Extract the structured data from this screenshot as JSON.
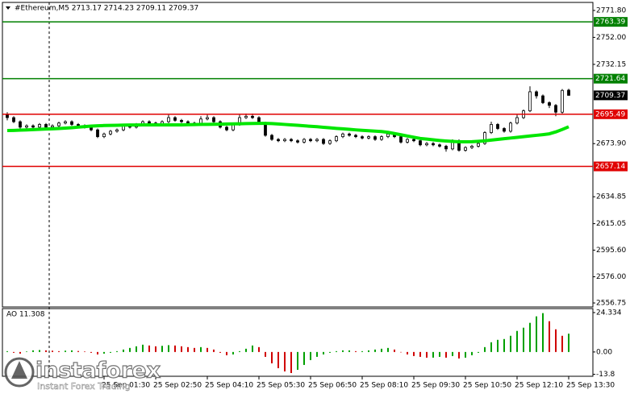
{
  "chart_data": [
    {
      "type": "candlestick",
      "title": "#Ethereum,M5  2713.17 2714.23 2709.11 2709.37",
      "categories": [
        null,
        null,
        null,
        null,
        null,
        null,
        null,
        null,
        null,
        null,
        null,
        null,
        null,
        null,
        null,
        "25 Sep 01:30",
        null,
        null,
        null,
        null,
        null,
        null,
        null,
        "25 Sep 02:50",
        null,
        null,
        null,
        null,
        null,
        null,
        null,
        "25 Sep 04:10",
        null,
        null,
        null,
        null,
        null,
        null,
        null,
        "25 Sep 05:30",
        null,
        null,
        null,
        null,
        null,
        null,
        null,
        "25 Sep 06:50",
        null,
        null,
        null,
        null,
        null,
        null,
        null,
        "25 Sep 08:10",
        null,
        null,
        null,
        null,
        null,
        null,
        null,
        "25 Sep 09:30",
        null,
        null,
        null,
        null,
        null,
        null,
        null,
        "25 Sep 10:50",
        null,
        null,
        null,
        null,
        null,
        null,
        null,
        "25 Sep 12:10",
        null,
        null,
        null,
        null,
        null,
        null,
        null,
        "25 Sep 13:30"
      ],
      "open": [
        2695,
        2693,
        2690,
        2686,
        2687,
        2686,
        2688,
        2686,
        2687,
        2689,
        2690,
        2688,
        2687,
        2686,
        2684,
        2679,
        2681,
        2683,
        2684,
        2687,
        2686,
        2688,
        2690,
        2689,
        2688,
        2690,
        2693,
        2691,
        2690,
        2689,
        2688,
        2692,
        2693,
        2690,
        2686,
        2684,
        2688,
        2693,
        2694,
        2693,
        2689,
        2680,
        2677,
        2676,
        2677,
        2676,
        2675,
        2677,
        2676,
        2677,
        2674,
        2676,
        2679,
        2681,
        2680,
        2679,
        2678,
        2679,
        2677,
        2679,
        2681,
        2679,
        2675,
        2677,
        2676,
        2673,
        2674,
        2673,
        2672,
        2670,
        2676,
        2669,
        2671,
        2672,
        2674,
        2682,
        2688,
        2685,
        2683,
        2689,
        2693,
        2698,
        2712,
        2709,
        2704,
        2702,
        2697,
        2713.17
      ],
      "high": [
        2697,
        2694,
        2691,
        2688,
        2688,
        2689,
        2689,
        2688,
        2690,
        2691,
        2691,
        2689,
        2688,
        2687,
        2685,
        2682,
        2684,
        2685,
        2688,
        2688,
        2689,
        2691,
        2691,
        2690,
        2691,
        2695,
        2694,
        2692,
        2691,
        2690,
        2694,
        2695,
        2694,
        2691,
        2687,
        2689,
        2695,
        2696,
        2696,
        2694,
        2690,
        2681,
        2678,
        2678,
        2678,
        2677,
        2678,
        2678,
        2678,
        2678,
        2677,
        2680,
        2682,
        2682,
        2681,
        2680,
        2680,
        2680,
        2680,
        2682,
        2682,
        2680,
        2678,
        2678,
        2677,
        2675,
        2675,
        2674,
        2673,
        2677,
        2677,
        2672,
        2673,
        2675,
        2683,
        2690,
        2689,
        2686,
        2690,
        2695,
        2699,
        2716,
        2713,
        2710,
        2705,
        2703,
        2714,
        2714.23
      ],
      "low": [
        2691,
        2689,
        2684,
        2685,
        2685,
        2685,
        2685,
        2685,
        2686,
        2688,
        2687,
        2686,
        2685,
        2683,
        2678,
        2678,
        2680,
        2682,
        2683,
        2685,
        2685,
        2687,
        2688,
        2687,
        2687,
        2689,
        2690,
        2689,
        2688,
        2687,
        2687,
        2691,
        2689,
        2685,
        2683,
        2683,
        2687,
        2692,
        2692,
        2688,
        2679,
        2676,
        2675,
        2675,
        2675,
        2674,
        2674,
        2675,
        2675,
        2673,
        2673,
        2675,
        2678,
        2679,
        2678,
        2677,
        2677,
        2676,
        2676,
        2678,
        2678,
        2674,
        2674,
        2675,
        2672,
        2672,
        2672,
        2671,
        2668,
        2669,
        2668,
        2668,
        2670,
        2671,
        2673,
        2681,
        2684,
        2682,
        2682,
        2688,
        2692,
        2697,
        2707,
        2703,
        2700,
        2694,
        2696,
        2709.11
      ],
      "close": [
        2693,
        2690,
        2686,
        2687,
        2686,
        2688,
        2686,
        2687,
        2689,
        2690,
        2688,
        2687,
        2686,
        2684,
        2679,
        2681,
        2683,
        2684,
        2687,
        2686,
        2688,
        2690,
        2689,
        2688,
        2690,
        2693,
        2691,
        2690,
        2689,
        2688,
        2692,
        2693,
        2690,
        2686,
        2684,
        2688,
        2693,
        2694,
        2693,
        2689,
        2680,
        2677,
        2676,
        2677,
        2676,
        2675,
        2677,
        2676,
        2677,
        2674,
        2676,
        2679,
        2681,
        2680,
        2679,
        2678,
        2679,
        2677,
        2679,
        2681,
        2679,
        2675,
        2677,
        2676,
        2673,
        2674,
        2673,
        2672,
        2670,
        2676,
        2669,
        2671,
        2672,
        2674,
        2682,
        2688,
        2685,
        2683,
        2689,
        2693,
        2698,
        2712,
        2709,
        2704,
        2702,
        2697,
        2713,
        2709.37
      ],
      "ma_values": [
        2683.5,
        2683.6,
        2683.8,
        2684,
        2684.2,
        2684.4,
        2684.6,
        2684.8,
        2685,
        2685.3,
        2685.6,
        2686,
        2686.4,
        2686.8,
        2687,
        2687.2,
        2687.3,
        2687.4,
        2687.5,
        2687.6,
        2687.6,
        2687.7,
        2687.7,
        2687.7,
        2687.7,
        2687.7,
        2687.7,
        2687.7,
        2687.8,
        2687.9,
        2688,
        2688,
        2688.1,
        2688.2,
        2688.3,
        2688.4,
        2688.5,
        2688.6,
        2688.7,
        2688.8,
        2688.8,
        2688.6,
        2688.3,
        2688,
        2687.7,
        2687.4,
        2687,
        2686.6,
        2686.3,
        2685.9,
        2685.5,
        2685.1,
        2684.8,
        2684.4,
        2684,
        2683.7,
        2683.4,
        2683.1,
        2682.8,
        2682.2,
        2681.3,
        2680.4,
        2679.5,
        2678.6,
        2677.7,
        2677.2,
        2676.7,
        2676.2,
        2675.8,
        2675.5,
        2675.2,
        2675.2,
        2675.3,
        2675.6,
        2676,
        2676.5,
        2677,
        2677.5,
        2678,
        2678.5,
        2679,
        2679.5,
        2680,
        2680.5,
        2681.1,
        2682.5,
        2684.3,
        2686.3
      ],
      "ma_color": "#00e600",
      "up_color": "#ffffff",
      "down_color": "#000000",
      "levels": [
        {
          "value": 2763.39,
          "color": "#008000"
        },
        {
          "value": 2721.64,
          "color": "#008000"
        },
        {
          "value": 2695.49,
          "color": "#e00000"
        },
        {
          "value": 2657.14,
          "color": "#e00000"
        }
      ],
      "last_color": "#000000",
      "ylim": [
        2553.8,
        2777.7
      ],
      "yticks": [
        {
          "value": 2771.8,
          "label": "2771.80"
        },
        {
          "value": 2752,
          "label": "2752.00"
        },
        {
          "value": 2732.15,
          "label": "2732.15"
        },
        {
          "value": 2673.9,
          "label": "2673.90"
        },
        {
          "value": 2634.85,
          "label": "2634.85"
        },
        {
          "value": 2615.05,
          "label": "2615.05"
        },
        {
          "value": 2595.6,
          "label": "2595.60"
        },
        {
          "value": 2576,
          "label": "2576.00"
        },
        {
          "value": 2556.75,
          "label": "2556.75"
        }
      ]
    },
    {
      "type": "bar",
      "title": "AO 11.308",
      "values": [
        0.5,
        -0.5,
        -1,
        0.3,
        1,
        1.2,
        1,
        0.8,
        0.5,
        0.8,
        1,
        0.6,
        0.3,
        -0.5,
        -1.5,
        -1,
        -0.5,
        0.5,
        1.5,
        2.5,
        3.5,
        4.5,
        4,
        3.5,
        3.8,
        4.2,
        4,
        3.5,
        3,
        2.5,
        3,
        2.5,
        1.5,
        -0.5,
        -2,
        -1.5,
        0.5,
        2,
        4,
        3,
        -3,
        -7,
        -10,
        -12,
        -13,
        -11,
        -8,
        -5,
        -3,
        -1.5,
        -0.5,
        0.5,
        1,
        1,
        0.5,
        0.5,
        1,
        1.5,
        2,
        2.5,
        1.5,
        0,
        -1.5,
        -2.5,
        -3,
        -3.5,
        -3.5,
        -3,
        -3.5,
        -2.5,
        -4,
        -3.5,
        -2,
        -0.5,
        3,
        6,
        7.5,
        8,
        10,
        13,
        15,
        18,
        22,
        24,
        19,
        14,
        10,
        11.308
      ],
      "up_color": "#00a000",
      "down_color": "#d00000",
      "ylim": [
        -15,
        26.8
      ],
      "yticks": [
        24.334,
        {
          "value": 0,
          "label": "0.00"
        },
        -13.8
      ]
    }
  ],
  "watermark": {
    "brand": "instaforex",
    "tagline": "Instant Forex Trading"
  }
}
